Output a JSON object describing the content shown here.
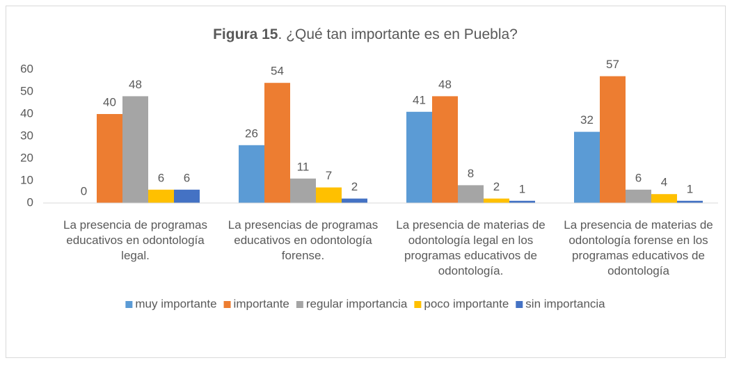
{
  "chart_data": {
    "type": "bar",
    "title": "Figura 15. ¿Qué tan importante es en Puebla?",
    "categories": [
      "La presencia de programas educativos en odontología legal.",
      "La presencias de programas educativos en odontología forense.",
      "La presencia de materias de odontología legal en los programas educativos de odontología.",
      "La presencia de materias de odontología forense en los programas educativos de odontología"
    ],
    "series": [
      {
        "name": "muy importante",
        "color": "#5b9bd5",
        "values": [
          0,
          26,
          41,
          32
        ]
      },
      {
        "name": "importante",
        "color": "#ed7d31",
        "values": [
          40,
          54,
          48,
          57
        ]
      },
      {
        "name": "regular importancia",
        "color": "#a5a5a5",
        "values": [
          48,
          11,
          8,
          6
        ]
      },
      {
        "name": "poco importante",
        "color": "#ffc000",
        "values": [
          6,
          7,
          2,
          4
        ]
      },
      {
        "name": "sin importancia",
        "color": "#4472c4",
        "values": [
          6,
          2,
          1,
          1
        ]
      }
    ],
    "ylim": [
      0,
      60
    ],
    "yticks": [
      0,
      10,
      20,
      30,
      40,
      50,
      60
    ],
    "grid": false,
    "legend": "bottom"
  }
}
